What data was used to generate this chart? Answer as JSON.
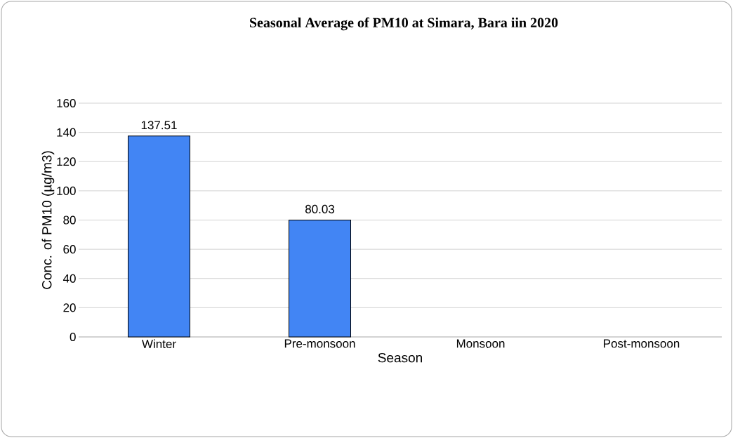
{
  "chart_data": {
    "type": "bar",
    "title": "Seasonal Average of PM10 at Simara, Bara iin 2020",
    "xlabel": "Season",
    "ylabel": "Conc. of PM10 (µg/m3)",
    "categories": [
      "Winter",
      "Pre-monsoon",
      "Monsoon",
      "Post-monsoon"
    ],
    "values": [
      137.51,
      80.03,
      null,
      null
    ],
    "color": "#4285f4",
    "ylim": [
      0,
      160
    ],
    "yticks": [
      0,
      20,
      40,
      60,
      80,
      100,
      120,
      140,
      160
    ],
    "grid": "y",
    "data_labels": true
  }
}
